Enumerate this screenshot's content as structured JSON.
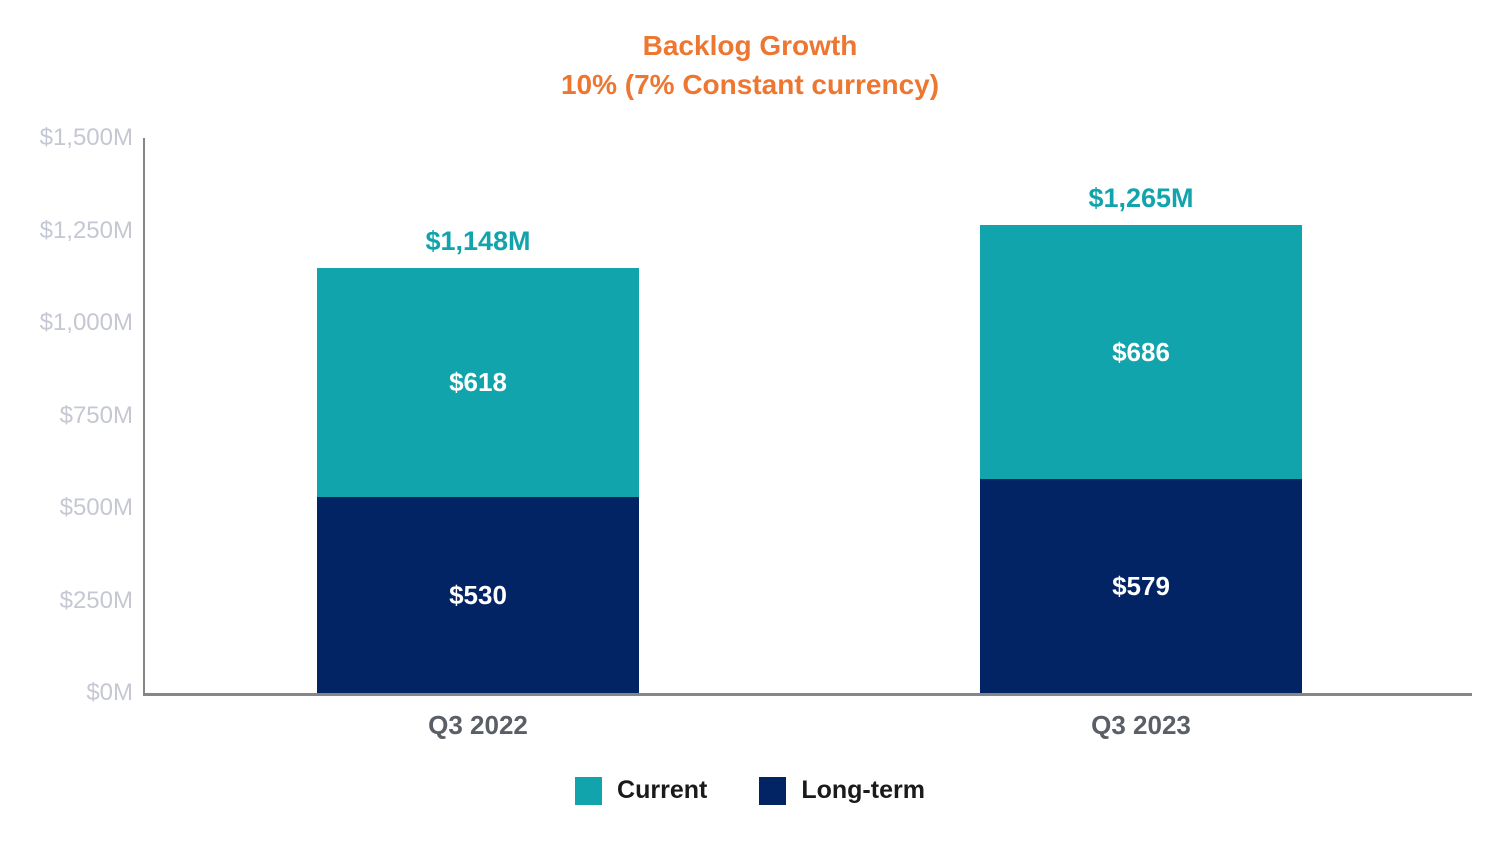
{
  "title": {
    "line1": "Backlog Growth",
    "line2": "10% (7% Constant currency)"
  },
  "colors": {
    "title_orange": "#ED7631",
    "current": "#12A4AD",
    "long_term": "#032464",
    "total_label_teal": "#12A4AD",
    "axis_line": "#85868A",
    "ytick_label": "#C5C8D2",
    "xtick_label": "#5A5F66",
    "legend_text": "#1A1A1A",
    "bar_value_text": "#FFFFFF",
    "background": "#FFFFFF"
  },
  "chart_data": {
    "type": "bar",
    "stacked": true,
    "title": "Backlog Growth 10% (7% Constant currency)",
    "categories": [
      "Q3 2022",
      "Q3 2023"
    ],
    "series": [
      {
        "name": "Long-term",
        "values": [
          530,
          579
        ],
        "color": "#032464"
      },
      {
        "name": "Current",
        "values": [
          618,
          686
        ],
        "color": "#12A4AD"
      }
    ],
    "totals": [
      1148,
      1265
    ],
    "total_labels": [
      "$1,148M",
      "$1,265M"
    ],
    "segment_labels": {
      "current": [
        "$618",
        "$686"
      ],
      "long_term": [
        "$530",
        "$579"
      ]
    },
    "ylim": [
      0,
      1500
    ],
    "ytick_values": [
      1500,
      1250,
      1000,
      750,
      500,
      250,
      0
    ],
    "yticks": [
      "$1,500M",
      "$1,250M",
      "$1,000M",
      "$750M",
      "$500M",
      "$250M",
      "$0M"
    ],
    "grid": false,
    "legend": [
      "Current",
      "Long-term"
    ],
    "legend_position": "bottom"
  }
}
